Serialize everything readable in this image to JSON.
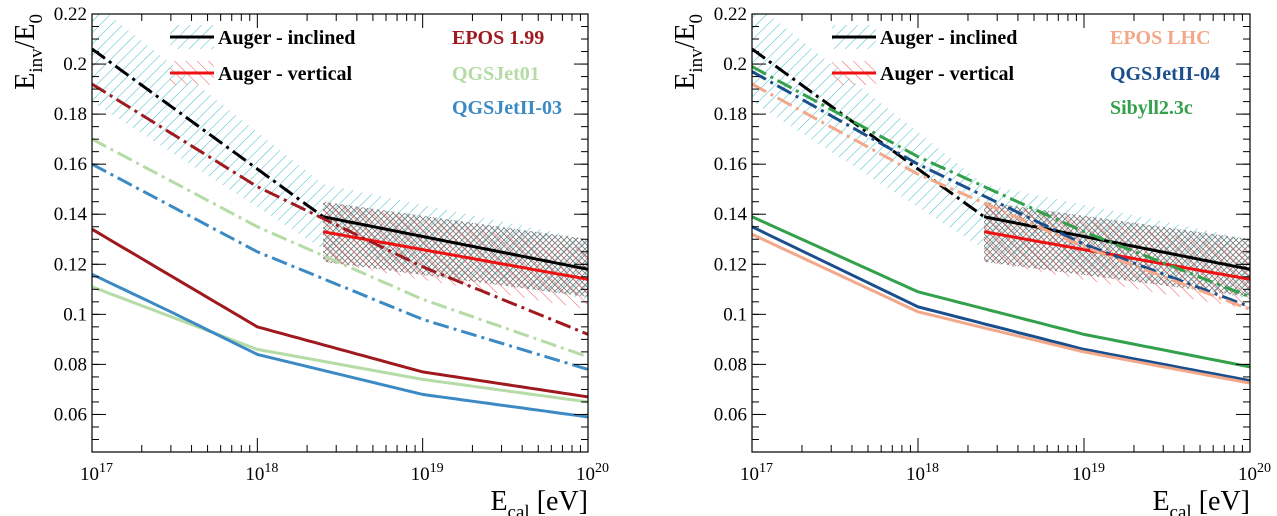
{
  "chart_data": [
    {
      "type": "line",
      "panel": "left",
      "x_scale": "log",
      "xlim": [
        1e+17,
        1e+20
      ],
      "ylim": [
        0.045,
        0.22
      ],
      "grid": false,
      "xlabel": {
        "main": "E",
        "sub": "cal",
        "unit": " [eV]"
      },
      "ylabel": {
        "main": "E",
        "sub": "inv",
        "mid": "/E",
        "sub2": "0"
      },
      "x_ticks": [
        {
          "base": "10",
          "exp": "17",
          "value": 1e+17
        },
        {
          "base": "10",
          "exp": "18",
          "value": 1e+18
        },
        {
          "base": "10",
          "exp": "19",
          "value": 1e+19
        },
        {
          "base": "10",
          "exp": "20",
          "value": 1e+20
        }
      ],
      "y_ticks": [
        "0.06",
        "0.08",
        "0.1",
        "0.12",
        "0.14",
        "0.16",
        "0.18",
        "0.2",
        "0.22"
      ],
      "bands": [
        {
          "name": "Auger - inclined",
          "color": "#4fc0c8",
          "hatch": "diag-down",
          "x_from": 1e+17,
          "x_to": 2.5e+18,
          "upper": [
            0.225,
            0.152
          ],
          "lower": [
            0.185,
            0.126
          ]
        },
        {
          "name": "Auger - inclined",
          "color": "#4fc0c8",
          "hatch": "diag-down",
          "x_from": 2.5e+18,
          "x_to": 1e+20,
          "upper": [
            0.152,
            0.13
          ],
          "lower": [
            0.126,
            0.106
          ]
        },
        {
          "name": "Auger - vertical",
          "color": "#7a7a7a",
          "hatch": "cross",
          "x_from": 2.5e+18,
          "x_to": 1e+20,
          "upper": [
            0.145,
            0.13
          ],
          "lower": [
            0.121,
            0.107
          ]
        },
        {
          "name": "Auger - vertical",
          "color": "#ee6666",
          "hatch": "diag-up",
          "x_from": 2.5e+18,
          "x_to": 1e+20,
          "upper": [
            0.145,
            0.126
          ],
          "lower": [
            0.121,
            0.102
          ]
        }
      ],
      "series": [
        {
          "name": "Auger - inclined",
          "color": "#000000",
          "style": "dashdot",
          "width": 3,
          "x": [
            1e+17,
            2.5e+18
          ],
          "y": [
            0.206,
            0.139
          ]
        },
        {
          "name": "Auger - inclined",
          "color": "#000000",
          "style": "solid",
          "width": 3,
          "x": [
            2.5e+18,
            1e+20
          ],
          "y": [
            0.139,
            0.118
          ]
        },
        {
          "name": "Auger - vertical",
          "color": "#ee1111",
          "style": "solid",
          "width": 3,
          "x": [
            2.5e+18,
            1e+20
          ],
          "y": [
            0.133,
            0.114
          ]
        },
        {
          "name": "EPOS 1.99",
          "color": "#9e1a1f",
          "style": "dashdot",
          "width": 3,
          "x": [
            1e+17,
            1e+18,
            1e+19,
            1e+20
          ],
          "y": [
            0.192,
            0.151,
            0.119,
            0.092
          ]
        },
        {
          "name": "QGSJet01",
          "color": "#b5dba6",
          "style": "dashdot",
          "width": 3,
          "x": [
            1e+17,
            1e+18,
            1e+19,
            1e+20
          ],
          "y": [
            0.17,
            0.135,
            0.106,
            0.083
          ]
        },
        {
          "name": "QGSJetII-03",
          "color": "#3c8ac4",
          "style": "dashdot",
          "width": 3,
          "x": [
            1e+17,
            1e+18,
            1e+19,
            1e+20
          ],
          "y": [
            0.16,
            0.125,
            0.098,
            0.078
          ]
        },
        {
          "name": "EPOS 1.99",
          "color": "#9e1a1f",
          "style": "solid",
          "width": 3,
          "x": [
            1e+17,
            1e+18,
            1e+19,
            1e+20
          ],
          "y": [
            0.134,
            0.095,
            0.077,
            0.067
          ]
        },
        {
          "name": "QGSJet01",
          "color": "#b5dba6",
          "style": "solid",
          "width": 3,
          "x": [
            1e+17,
            1e+18,
            1e+19,
            1e+20
          ],
          "y": [
            0.111,
            0.086,
            0.074,
            0.065
          ]
        },
        {
          "name": "QGSJetII-03",
          "color": "#3c8ac4",
          "style": "solid",
          "width": 3,
          "x": [
            1e+17,
            3e+17,
            1e+18,
            1e+19,
            1e+20
          ],
          "y": [
            0.116,
            0.101,
            0.084,
            0.068,
            0.059
          ]
        }
      ],
      "legend": [
        {
          "label": "Auger - inclined",
          "color": "#000000",
          "kind": "line-band",
          "band_color": "#4fc0c8",
          "band_hatch": "diag-down",
          "col": 0,
          "row": 0
        },
        {
          "label": "Auger - vertical",
          "color": "#ee1111",
          "kind": "line-band",
          "band_color": "#ee6666",
          "band_hatch": "diag-up",
          "col": 0,
          "row": 1
        },
        {
          "label": "EPOS 1.99",
          "color": "#9e1a1f",
          "kind": "text",
          "col": 1,
          "row": 0
        },
        {
          "label": "QGSJet01",
          "color": "#b5dba6",
          "kind": "text",
          "col": 1,
          "row": 1
        },
        {
          "label": "QGSJetII-03",
          "color": "#3c8ac4",
          "kind": "text",
          "col": 1,
          "row": 2
        }
      ],
      "legend_placement": "top-right"
    },
    {
      "type": "line",
      "panel": "right",
      "x_scale": "log",
      "xlim": [
        1e+17,
        1e+20
      ],
      "ylim": [
        0.045,
        0.22
      ],
      "grid": false,
      "xlabel": {
        "main": "E",
        "sub": "cal",
        "unit": " [eV]"
      },
      "ylabel": {
        "main": "E",
        "sub": "inv",
        "mid": "/E",
        "sub2": "0"
      },
      "x_ticks": [
        {
          "base": "10",
          "exp": "17",
          "value": 1e+17
        },
        {
          "base": "10",
          "exp": "18",
          "value": 1e+18
        },
        {
          "base": "10",
          "exp": "19",
          "value": 1e+19
        },
        {
          "base": "10",
          "exp": "20",
          "value": 1e+20
        }
      ],
      "y_ticks": [
        "0.06",
        "0.08",
        "0.1",
        "0.12",
        "0.14",
        "0.16",
        "0.18",
        "0.2",
        "0.22"
      ],
      "bands": [
        {
          "name": "Auger - inclined",
          "color": "#4fc0c8",
          "hatch": "diag-down",
          "x_from": 1e+17,
          "x_to": 2.5e+18,
          "upper": [
            0.225,
            0.152
          ],
          "lower": [
            0.185,
            0.126
          ]
        },
        {
          "name": "Auger - inclined",
          "color": "#4fc0c8",
          "hatch": "diag-down",
          "x_from": 2.5e+18,
          "x_to": 1e+20,
          "upper": [
            0.152,
            0.13
          ],
          "lower": [
            0.126,
            0.106
          ]
        },
        {
          "name": "Auger - vertical",
          "color": "#7a7a7a",
          "hatch": "cross",
          "x_from": 2.5e+18,
          "x_to": 1e+20,
          "upper": [
            0.145,
            0.13
          ],
          "lower": [
            0.121,
            0.107
          ]
        },
        {
          "name": "Auger - vertical",
          "color": "#ee6666",
          "hatch": "diag-up",
          "x_from": 2.5e+18,
          "x_to": 1e+20,
          "upper": [
            0.145,
            0.126
          ],
          "lower": [
            0.121,
            0.102
          ]
        }
      ],
      "series": [
        {
          "name": "Auger - inclined",
          "color": "#000000",
          "style": "dashdot",
          "width": 3,
          "x": [
            1e+17,
            2.5e+18
          ],
          "y": [
            0.206,
            0.139
          ]
        },
        {
          "name": "Auger - inclined",
          "color": "#000000",
          "style": "solid",
          "width": 3,
          "x": [
            2.5e+18,
            1e+20
          ],
          "y": [
            0.139,
            0.118
          ]
        },
        {
          "name": "Auger - vertical",
          "color": "#ee1111",
          "style": "solid",
          "width": 3,
          "x": [
            2.5e+18,
            1e+20
          ],
          "y": [
            0.133,
            0.114
          ]
        },
        {
          "name": "Sibyll2.3c",
          "color": "#33a04b",
          "style": "dashdot",
          "width": 3,
          "x": [
            1e+17,
            1e+18,
            1e+19,
            1e+20
          ],
          "y": [
            0.199,
            0.163,
            0.133,
            0.107
          ]
        },
        {
          "name": "QGSJetII-04",
          "color": "#1a4e8c",
          "style": "dashdot",
          "width": 3,
          "x": [
            1e+17,
            1e+18,
            1e+19,
            1e+20
          ],
          "y": [
            0.197,
            0.16,
            0.128,
            0.103
          ]
        },
        {
          "name": "EPOS LHC",
          "color": "#f2a889",
          "style": "dashdot",
          "width": 3,
          "x": [
            1e+17,
            1e+18,
            1e+19,
            1e+20
          ],
          "y": [
            0.192,
            0.156,
            0.127,
            0.102
          ]
        },
        {
          "name": "Sibyll2.3c",
          "color": "#33a04b",
          "style": "solid",
          "width": 3,
          "x": [
            1e+17,
            1e+18,
            1e+19,
            1e+20
          ],
          "y": [
            0.139,
            0.109,
            0.092,
            0.079
          ]
        },
        {
          "name": "QGSJetII-04",
          "color": "#1a4e8c",
          "style": "solid",
          "width": 3,
          "x": [
            1e+17,
            1e+18,
            1e+19,
            1e+20
          ],
          "y": [
            0.135,
            0.103,
            0.086,
            0.0735
          ]
        },
        {
          "name": "EPOS LHC",
          "color": "#f2a889",
          "style": "solid",
          "width": 3,
          "x": [
            1e+17,
            1e+18,
            1e+19,
            1e+20
          ],
          "y": [
            0.132,
            0.101,
            0.085,
            0.0725
          ]
        }
      ],
      "legend": [
        {
          "label": "Auger - inclined",
          "color": "#000000",
          "kind": "line-band",
          "band_color": "#4fc0c8",
          "band_hatch": "diag-down",
          "col": 0,
          "row": 0
        },
        {
          "label": "Auger - vertical",
          "color": "#ee1111",
          "kind": "line-band",
          "band_color": "#ee6666",
          "band_hatch": "diag-up",
          "col": 0,
          "row": 1
        },
        {
          "label": "EPOS LHC",
          "color": "#f2a889",
          "kind": "text",
          "col": 1,
          "row": 0
        },
        {
          "label": "QGSJetII-04",
          "color": "#1a4e8c",
          "kind": "text",
          "col": 1,
          "row": 1
        },
        {
          "label": "Sibyll2.3c",
          "color": "#33a04b",
          "kind": "text",
          "col": 1,
          "row": 2
        }
      ],
      "legend_placement": "top-right"
    }
  ]
}
